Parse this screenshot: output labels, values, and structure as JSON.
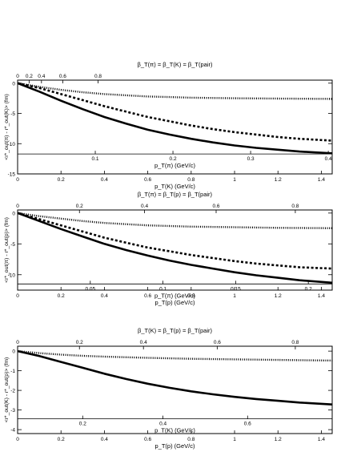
{
  "chart_data": [
    {
      "type": "line",
      "top_axis_title": "β_T(π) = β_T(K) = β_T(pair)",
      "ylabel": "<r*_out(π) - r*_out(K)> (fm)",
      "xlabel_bottom": "p_T(K) (GeV/c)",
      "xlabel_inner": "p_T(π) (GeV/c)",
      "ylim": [
        -15,
        0.5
      ],
      "xlim": [
        0,
        1.45
      ],
      "yticks": [
        "0",
        "-5",
        "-10",
        "-15"
      ],
      "ytick_values": [
        0,
        -5,
        -10,
        -15
      ],
      "xticks_bottom": [
        "0",
        "0.2",
        "0.4",
        "0.6",
        "0.8",
        "1",
        "1.2",
        "1.4"
      ],
      "xticks_top": [
        "0.2",
        "0.4",
        "0.6",
        "0.8"
      ],
      "xticks_top_pos": [
        0.053,
        0.11,
        0.208,
        0.371
      ],
      "xticks_inner": [
        "0.1",
        "0.2",
        "0.3",
        "0.4"
      ],
      "xticks_inner_pos": [
        0.358,
        0.716,
        1.074,
        1.432
      ],
      "inner_axis_y": -11.7,
      "series": [
        {
          "style": "solid",
          "x": [
            0,
            0.1,
            0.2,
            0.3,
            0.4,
            0.5,
            0.6,
            0.7,
            0.8,
            0.9,
            1.0,
            1.1,
            1.2,
            1.3,
            1.45
          ],
          "y": [
            0,
            -1.4,
            -2.9,
            -4.3,
            -5.6,
            -6.7,
            -7.7,
            -8.5,
            -9.2,
            -9.8,
            -10.3,
            -10.7,
            -11.0,
            -11.3,
            -11.6
          ]
        },
        {
          "style": "dashed",
          "x": [
            0,
            0.1,
            0.2,
            0.3,
            0.4,
            0.5,
            0.6,
            0.7,
            0.8,
            0.9,
            1.0,
            1.1,
            1.2,
            1.3,
            1.45
          ],
          "y": [
            0,
            -0.8,
            -1.8,
            -2.8,
            -3.8,
            -4.7,
            -5.6,
            -6.3,
            -7.0,
            -7.6,
            -8.1,
            -8.5,
            -8.9,
            -9.2,
            -9.5
          ]
        },
        {
          "style": "dotted",
          "x": [
            0,
            0.1,
            0.2,
            0.3,
            0.4,
            0.5,
            0.6,
            0.7,
            0.8,
            1.0,
            1.2,
            1.45
          ],
          "y": [
            0,
            -0.6,
            -1.1,
            -1.5,
            -1.8,
            -2.0,
            -2.2,
            -2.3,
            -2.4,
            -2.5,
            -2.55,
            -2.6
          ]
        }
      ]
    },
    {
      "type": "line",
      "top_axis_title": "β_T(π) = β_T(p) = β_T(pair)",
      "ylabel": "<r*_out(π) - r*_out(p)> (fm)",
      "xlabel_bottom": "p_T(p) (GeV/c)",
      "xlabel_inner": "p_T(π) (GeV/c)",
      "ylim": [
        -12.5,
        0.5
      ],
      "xlim": [
        0,
        1.45
      ],
      "yticks": [
        "0",
        "-5",
        "-10"
      ],
      "ytick_values": [
        0,
        -5,
        -10
      ],
      "xticks_bottom": [
        "0",
        "0.2",
        "0.4",
        "0.6",
        "0.8",
        "1",
        "1.2",
        "1.4"
      ],
      "xticks_top": [
        "0.2",
        "0.4",
        "0.6",
        "0.8"
      ],
      "xticks_top_pos": [
        0.285,
        0.585,
        0.915,
        1.28
      ],
      "xticks_inner": [
        "0.05",
        "0.1",
        "0.15",
        "0.2"
      ],
      "xticks_inner_pos": [
        0.335,
        0.67,
        1.005,
        1.34
      ],
      "inner_axis_y": -11.5,
      "series": [
        {
          "style": "solid",
          "x": [
            0,
            0.1,
            0.2,
            0.3,
            0.4,
            0.5,
            0.6,
            0.7,
            0.8,
            0.9,
            1.0,
            1.1,
            1.2,
            1.3,
            1.45
          ],
          "y": [
            0,
            -1.3,
            -2.6,
            -3.8,
            -5.0,
            -6.0,
            -6.9,
            -7.7,
            -8.4,
            -9.0,
            -9.6,
            -10.1,
            -10.5,
            -10.9,
            -11.3
          ]
        },
        {
          "style": "dashed",
          "x": [
            0,
            0.1,
            0.2,
            0.3,
            0.4,
            0.5,
            0.6,
            0.7,
            0.8,
            0.9,
            1.0,
            1.1,
            1.2,
            1.3,
            1.45
          ],
          "y": [
            0,
            -1.0,
            -2.0,
            -3.0,
            -4.0,
            -4.8,
            -5.6,
            -6.2,
            -6.8,
            -7.3,
            -7.8,
            -8.2,
            -8.5,
            -8.8,
            -9.0
          ]
        },
        {
          "style": "dotted",
          "x": [
            0,
            0.1,
            0.2,
            0.3,
            0.4,
            0.5,
            0.6,
            0.7,
            0.8,
            1.0,
            1.2,
            1.45
          ],
          "y": [
            0,
            -0.5,
            -0.9,
            -1.3,
            -1.6,
            -1.8,
            -2.0,
            -2.1,
            -2.2,
            -2.3,
            -2.4,
            -2.45
          ]
        }
      ]
    },
    {
      "type": "line",
      "top_axis_title": "β_T(K) = β_T(p) = β_T(pair)",
      "ylabel": "<r*_out(K) - r*_out(p)> (fm)",
      "xlabel_bottom": "p_T(p) (GeV/c)",
      "xlabel_inner": "p_T(K) (GeV/c)",
      "ylim": [
        -4.2,
        0.25
      ],
      "xlim": [
        0,
        1.45
      ],
      "yticks": [
        "0",
        "-1",
        "-2",
        "-3",
        "-4"
      ],
      "ytick_values": [
        0,
        -1,
        -2,
        -3,
        -4
      ],
      "xticks_bottom": [
        "0",
        "0.2",
        "0.4",
        "0.6",
        "0.8",
        "1",
        "1.2",
        "1.4"
      ],
      "xticks_top": [
        "0.2",
        "0.4",
        "0.6",
        "0.8"
      ],
      "xticks_top_pos": [
        0.285,
        0.58,
        0.92,
        1.28
      ],
      "xticks_inner": [
        "0.2",
        "0.4",
        "0.6"
      ],
      "xticks_inner_pos": [
        0.3,
        0.67,
        1.06
      ],
      "inner_axis_y": -3.45,
      "series": [
        {
          "style": "solid",
          "x": [
            0,
            0.1,
            0.2,
            0.3,
            0.4,
            0.5,
            0.6,
            0.7,
            0.8,
            0.9,
            1.0,
            1.1,
            1.2,
            1.3,
            1.45
          ],
          "y": [
            0,
            -0.25,
            -0.55,
            -0.85,
            -1.15,
            -1.42,
            -1.66,
            -1.87,
            -2.05,
            -2.2,
            -2.33,
            -2.44,
            -2.53,
            -2.62,
            -2.72
          ]
        },
        {
          "style": "dotted",
          "x": [
            0,
            0.1,
            0.2,
            0.3,
            0.4,
            0.6,
            0.8,
            1.0,
            1.2,
            1.45
          ],
          "y": [
            0,
            -0.1,
            -0.18,
            -0.24,
            -0.28,
            -0.34,
            -0.39,
            -0.42,
            -0.45,
            -0.48
          ]
        }
      ]
    }
  ]
}
